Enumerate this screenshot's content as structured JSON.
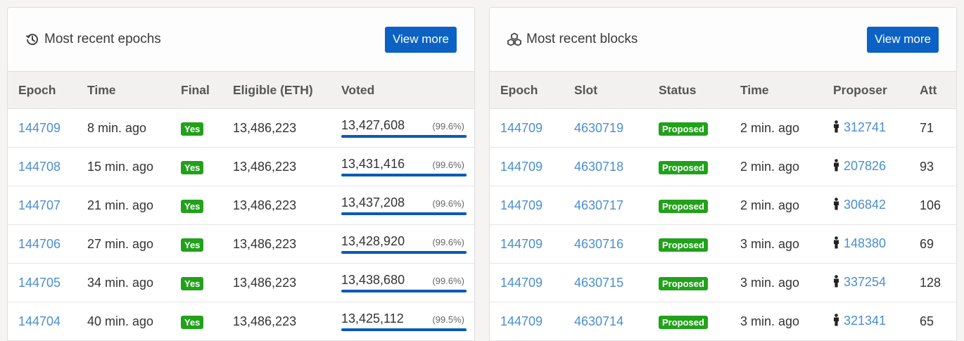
{
  "epochs": {
    "title": "Most recent epochs",
    "icon": "history-icon",
    "view_more": "View more",
    "columns": [
      "Epoch",
      "Time",
      "Final",
      "Eligible (ETH)",
      "Voted"
    ],
    "rows": [
      {
        "epoch": "144709",
        "time": "8 min. ago",
        "final": "Yes",
        "eligible": "13,486,223",
        "voted": "13,427,608",
        "pct": "(99.6%)",
        "fraction": 0.996
      },
      {
        "epoch": "144708",
        "time": "15 min. ago",
        "final": "Yes",
        "eligible": "13,486,223",
        "voted": "13,431,416",
        "pct": "(99.6%)",
        "fraction": 0.996
      },
      {
        "epoch": "144707",
        "time": "21 min. ago",
        "final": "Yes",
        "eligible": "13,486,223",
        "voted": "13,437,208",
        "pct": "(99.6%)",
        "fraction": 0.996
      },
      {
        "epoch": "144706",
        "time": "27 min. ago",
        "final": "Yes",
        "eligible": "13,486,223",
        "voted": "13,428,920",
        "pct": "(99.6%)",
        "fraction": 0.996
      },
      {
        "epoch": "144705",
        "time": "34 min. ago",
        "final": "Yes",
        "eligible": "13,486,223",
        "voted": "13,438,680",
        "pct": "(99.6%)",
        "fraction": 0.996
      },
      {
        "epoch": "144704",
        "time": "40 min. ago",
        "final": "Yes",
        "eligible": "13,486,223",
        "voted": "13,425,112",
        "pct": "(99.5%)",
        "fraction": 0.995
      }
    ]
  },
  "blocks": {
    "title": "Most recent blocks",
    "icon": "cubes-icon",
    "view_more": "View more",
    "columns": [
      "Epoch",
      "Slot",
      "Status",
      "Time",
      "Proposer",
      "Att"
    ],
    "rows": [
      {
        "epoch": "144709",
        "slot": "4630719",
        "status": "Proposed",
        "time": "2 min. ago",
        "proposer": "312741",
        "att": "71"
      },
      {
        "epoch": "144709",
        "slot": "4630718",
        "status": "Proposed",
        "time": "2 min. ago",
        "proposer": "207826",
        "att": "93"
      },
      {
        "epoch": "144709",
        "slot": "4630717",
        "status": "Proposed",
        "time": "2 min. ago",
        "proposer": "306842",
        "att": "106"
      },
      {
        "epoch": "144709",
        "slot": "4630716",
        "status": "Proposed",
        "time": "3 min. ago",
        "proposer": "148380",
        "att": "69"
      },
      {
        "epoch": "144709",
        "slot": "4630715",
        "status": "Proposed",
        "time": "3 min. ago",
        "proposer": "337254",
        "att": "128"
      },
      {
        "epoch": "144709",
        "slot": "4630714",
        "status": "Proposed",
        "time": "3 min. ago",
        "proposer": "321341",
        "att": "65"
      }
    ]
  },
  "colors": {
    "accent": "#0b62c4",
    "link": "#4a8ed0",
    "badge": "#22a11b",
    "bar": "#0b5ab8"
  }
}
